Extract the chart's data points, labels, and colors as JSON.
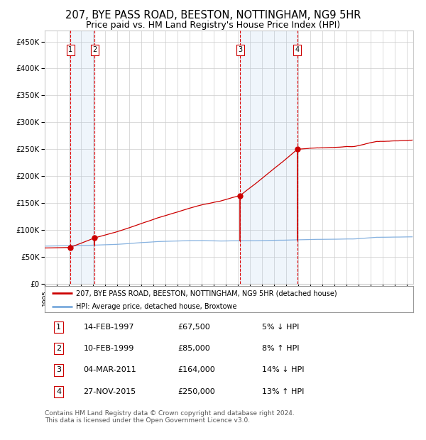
{
  "title": "207, BYE PASS ROAD, BEESTON, NOTTINGHAM, NG9 5HR",
  "subtitle": "Price paid vs. HM Land Registry's House Price Index (HPI)",
  "ylabel_vals": [
    "£0",
    "£50K",
    "£100K",
    "£150K",
    "£200K",
    "£250K",
    "£300K",
    "£350K",
    "£400K",
    "£450K"
  ],
  "yticks": [
    0,
    50000,
    100000,
    150000,
    200000,
    250000,
    300000,
    350000,
    400000,
    450000
  ],
  "ylim": [
    0,
    470000
  ],
  "xlim_start": 1995.0,
  "xlim_end": 2025.5,
  "sale_dates": [
    1997.12,
    1999.12,
    2011.18,
    2015.91
  ],
  "sale_prices": [
    67500,
    85000,
    164000,
    250000
  ],
  "sale_labels": [
    "1",
    "2",
    "3",
    "4"
  ],
  "vline_color": "#dd0000",
  "vspan_color": "#ddeeff",
  "sale_marker_color": "#cc0000",
  "hpi_line_color": "#7aaadd",
  "price_line_color": "#cc0000",
  "legend_label_price": "207, BYE PASS ROAD, BEESTON, NOTTINGHAM, NG9 5HR (detached house)",
  "legend_label_hpi": "HPI: Average price, detached house, Broxtowe",
  "table_rows": [
    [
      "1",
      "14-FEB-1997",
      "£67,500",
      "5% ↓ HPI"
    ],
    [
      "2",
      "10-FEB-1999",
      "£85,000",
      "8% ↑ HPI"
    ],
    [
      "3",
      "04-MAR-2011",
      "£164,000",
      "14% ↓ HPI"
    ],
    [
      "4",
      "27-NOV-2015",
      "£250,000",
      "13% ↑ HPI"
    ]
  ],
  "footnote": "Contains HM Land Registry data © Crown copyright and database right 2024.\nThis data is licensed under the Open Government Licence v3.0.",
  "background_color": "#ffffff",
  "grid_color": "#cccccc"
}
